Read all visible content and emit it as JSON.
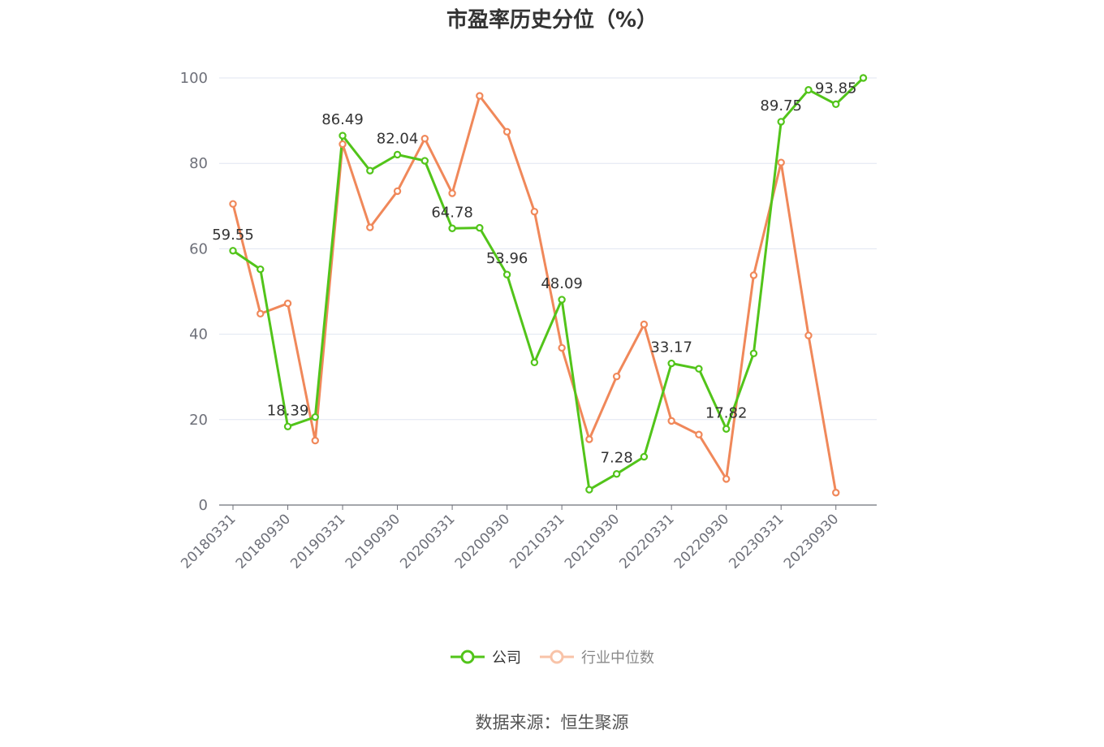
{
  "chart_data": {
    "type": "line",
    "title": "市盈率历史分位（%）",
    "xlabel": "",
    "ylabel": "",
    "ylim": [
      0,
      100
    ],
    "yticks": [
      0,
      20,
      40,
      60,
      80,
      100
    ],
    "grid": true,
    "legend_position": "bottom",
    "x": [
      "20180331",
      "20180630",
      "20180930",
      "20181231",
      "20190331",
      "20190630",
      "20190930",
      "20191231",
      "20200331",
      "20200630",
      "20200930",
      "20201231",
      "20210331",
      "20210630",
      "20210930",
      "20211231",
      "20220331",
      "20220630",
      "20220930",
      "20221231",
      "20230331",
      "20230630",
      "20230930",
      "20231231"
    ],
    "x_tick_labels": [
      "20180331",
      "20180930",
      "20190331",
      "20190930",
      "20200331",
      "20200930",
      "20210331",
      "20210930",
      "20220331",
      "20220930",
      "20230331",
      "20230930"
    ],
    "series": [
      {
        "name": "公司",
        "color": "#52c41a",
        "values": [
          59.55,
          55.2,
          18.39,
          20.6,
          86.49,
          78.3,
          82.04,
          80.6,
          64.78,
          64.9,
          53.96,
          33.4,
          48.09,
          3.6,
          7.28,
          11.3,
          33.17,
          31.9,
          17.82,
          35.5,
          89.75,
          97.2,
          93.85,
          100
        ],
        "labeled_indices": [
          0,
          2,
          4,
          6,
          8,
          10,
          12,
          14,
          16,
          18,
          20,
          22
        ]
      },
      {
        "name": "行业中位数",
        "color": "#f0885a",
        "values": [
          70.5,
          44.8,
          47.2,
          15.1,
          84.5,
          65.0,
          73.5,
          85.8,
          73.0,
          95.8,
          87.4,
          68.7,
          36.8,
          15.4,
          30.1,
          42.3,
          19.7,
          16.5,
          6.1,
          53.8,
          80.2,
          39.7,
          2.9,
          null
        ]
      }
    ],
    "source": "数据来源：恒生聚源"
  }
}
